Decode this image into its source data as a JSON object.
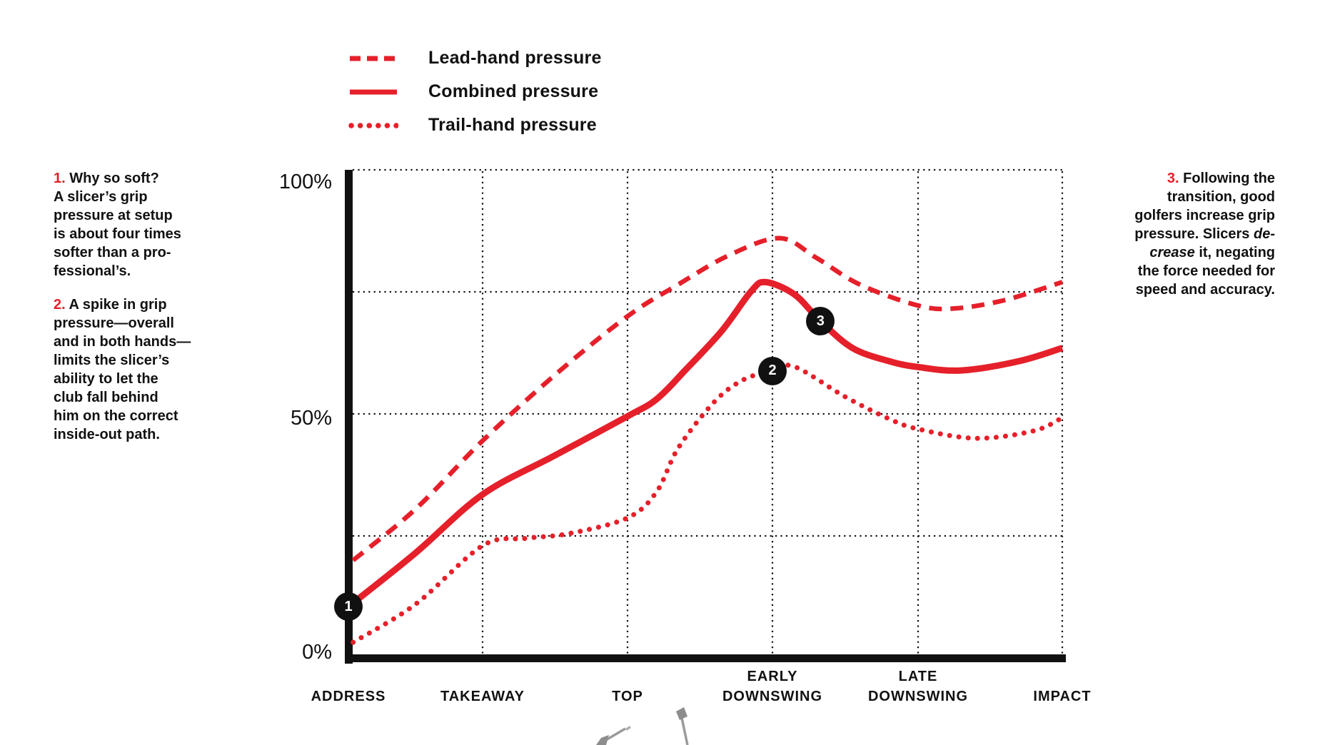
{
  "colors": {
    "accent_red": "#e5202a",
    "ink": "#111111",
    "grid": "#111111",
    "marker_bg": "#111111",
    "marker_text": "#ffffff",
    "club_gray": "#9b9b9b"
  },
  "legend": {
    "items": [
      {
        "label": "Lead-hand pressure",
        "style": "dashed"
      },
      {
        "label": "Combined pressure",
        "style": "solid"
      },
      {
        "label": "Trail-hand pressure",
        "style": "dotted"
      }
    ]
  },
  "notes": [
    {
      "number": "1.",
      "align": "left",
      "lines": [
        "Why so soft?",
        "A slicer’s grip",
        "pressure at setup",
        "is about four times",
        "softer than a pro-",
        "fessional’s."
      ]
    },
    {
      "number": "2.",
      "align": "left",
      "lines": [
        "A spike in grip",
        "pressure—overall",
        "and in both hands—",
        "limits the slicer’s",
        "ability to let the",
        "club fall behind",
        "him on the correct",
        "inside-out path."
      ]
    },
    {
      "number": "3.",
      "align": "right",
      "lines": [
        "Following the",
        "transition, good",
        "golfers increase grip",
        "pressure. Slicers *de-*",
        "*crease* it, negating",
        "the force needed for",
        "speed and accuracy."
      ]
    }
  ],
  "chart_data": {
    "type": "line",
    "title": "",
    "xlabel": "",
    "ylabel": "",
    "ylim": [
      0,
      100
    ],
    "grid": {
      "horizontal_percent": [
        100,
        75,
        50,
        25
      ],
      "vertical_at_categories": [
        1,
        2,
        3,
        4,
        5
      ]
    },
    "y_ticks": [
      "100%",
      "50%",
      "0%"
    ],
    "categories": [
      "ADDRESS",
      "TAKEAWAY",
      "TOP",
      "EARLY DOWNSWING",
      "LATE DOWNSWING",
      "IMPACT"
    ],
    "x_axis_labels": [
      [
        "ADDRESS"
      ],
      [
        "TAKEAWAY"
      ],
      [
        "TOP"
      ],
      [
        "EARLY",
        "DOWNSWING"
      ],
      [
        "LATE",
        "DOWNSWING"
      ],
      [
        "IMPACT"
      ]
    ],
    "series": [
      {
        "name": "Lead-hand pressure",
        "line_style": "dashed",
        "color": "#e5202a",
        "values_at_categories": [
          20,
          44.5,
          70,
          86,
          72,
          77
        ],
        "points": [
          [
            0.035,
            20
          ],
          [
            0.5,
            30.5
          ],
          [
            1,
            44.5
          ],
          [
            1.5,
            58
          ],
          [
            2,
            70
          ],
          [
            2.35,
            76.5
          ],
          [
            2.7,
            82.5
          ],
          [
            3.05,
            86
          ],
          [
            3.3,
            82
          ],
          [
            3.6,
            76.5
          ],
          [
            4,
            72.2
          ],
          [
            4.25,
            71.6
          ],
          [
            4.6,
            73.3
          ],
          [
            5,
            77
          ]
        ]
      },
      {
        "name": "Combined pressure",
        "line_style": "solid",
        "color": "#e5202a",
        "values_at_categories": [
          10.5,
          33.5,
          49.5,
          76.5,
          59.6,
          63.5
        ],
        "points": [
          [
            0,
            10.5
          ],
          [
            0.5,
            21.5
          ],
          [
            1,
            33.5
          ],
          [
            1.5,
            41.5
          ],
          [
            2,
            49.5
          ],
          [
            2.2,
            53
          ],
          [
            2.4,
            59
          ],
          [
            2.65,
            67
          ],
          [
            2.85,
            75
          ],
          [
            2.95,
            77
          ],
          [
            3.15,
            74.5
          ],
          [
            3.33,
            69
          ],
          [
            3.55,
            63.5
          ],
          [
            3.8,
            60.8
          ],
          [
            4,
            59.6
          ],
          [
            4.3,
            58.9
          ],
          [
            4.7,
            60.8
          ],
          [
            5,
            63.5
          ]
        ]
      },
      {
        "name": "Trail-hand pressure",
        "line_style": "dotted",
        "color": "#e5202a",
        "values_at_categories": [
          3.2,
          23,
          28.7,
          58.8,
          46.9,
          49.2
        ],
        "points": [
          [
            0.035,
            3.2
          ],
          [
            0.5,
            11
          ],
          [
            1,
            23
          ],
          [
            1.3,
            24.5
          ],
          [
            1.6,
            25.5
          ],
          [
            2,
            28.7
          ],
          [
            2.2,
            34
          ],
          [
            2.35,
            43
          ],
          [
            2.6,
            52.5
          ],
          [
            2.8,
            57
          ],
          [
            3,
            58.8
          ],
          [
            3.15,
            59.7
          ],
          [
            3.5,
            53.5
          ],
          [
            3.8,
            49
          ],
          [
            4,
            46.9
          ],
          [
            4.4,
            45
          ],
          [
            4.8,
            46.5
          ],
          [
            5,
            49.2
          ]
        ]
      }
    ],
    "markers": [
      {
        "label": "1",
        "series": "Combined pressure",
        "u": 0,
        "value": 10.5
      },
      {
        "label": "2",
        "series": "Trail-hand pressure",
        "u": 3,
        "value": 58.8
      },
      {
        "label": "3",
        "series": "Combined pressure",
        "u": 3.33,
        "value": 69
      }
    ]
  }
}
